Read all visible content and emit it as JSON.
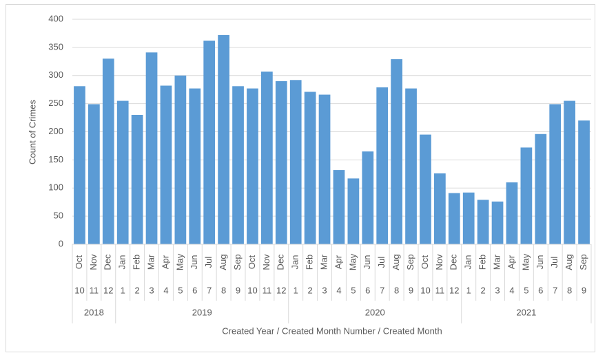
{
  "chart_data": {
    "type": "bar",
    "categories": [
      "Oct",
      "Nov",
      "Dec",
      "Jan",
      "Feb",
      "Mar",
      "Apr",
      "May",
      "Jun",
      "Jul",
      "Aug",
      "Sep",
      "Oct",
      "Nov",
      "Dec",
      "Jan",
      "Feb",
      "Mar",
      "Apr",
      "May",
      "Jun",
      "Jul",
      "Aug",
      "Sep",
      "Oct",
      "Nov",
      "Dec",
      "Jan",
      "Feb",
      "Mar",
      "Apr",
      "May",
      "Jun",
      "Jul",
      "Aug",
      "Sep"
    ],
    "month_numbers": [
      10,
      11,
      12,
      1,
      2,
      3,
      4,
      5,
      6,
      7,
      8,
      9,
      10,
      11,
      12,
      1,
      2,
      3,
      4,
      5,
      6,
      7,
      8,
      9,
      10,
      11,
      12,
      1,
      2,
      3,
      4,
      5,
      6,
      7,
      8,
      9
    ],
    "years": [
      2018,
      2018,
      2018,
      2019,
      2019,
      2019,
      2019,
      2019,
      2019,
      2019,
      2019,
      2019,
      2019,
      2019,
      2019,
      2020,
      2020,
      2020,
      2020,
      2020,
      2020,
      2020,
      2020,
      2020,
      2020,
      2020,
      2020,
      2021,
      2021,
      2021,
      2021,
      2021,
      2021,
      2021,
      2021,
      2021
    ],
    "values": [
      281,
      249,
      330,
      255,
      230,
      341,
      282,
      300,
      277,
      362,
      372,
      281,
      277,
      307,
      290,
      292,
      271,
      266,
      132,
      117,
      165,
      279,
      329,
      277,
      195,
      126,
      91,
      92,
      79,
      76,
      110,
      172,
      196,
      249,
      255,
      220
    ],
    "color": "#5b9bd5",
    "y_label": "Count of Crimes",
    "x_label": "Created Year / Created Month Number / Created Month",
    "ylim": [
      0,
      400
    ],
    "yticks": [
      0,
      50,
      100,
      150,
      200,
      250,
      300,
      350,
      400
    ],
    "grid": true
  }
}
